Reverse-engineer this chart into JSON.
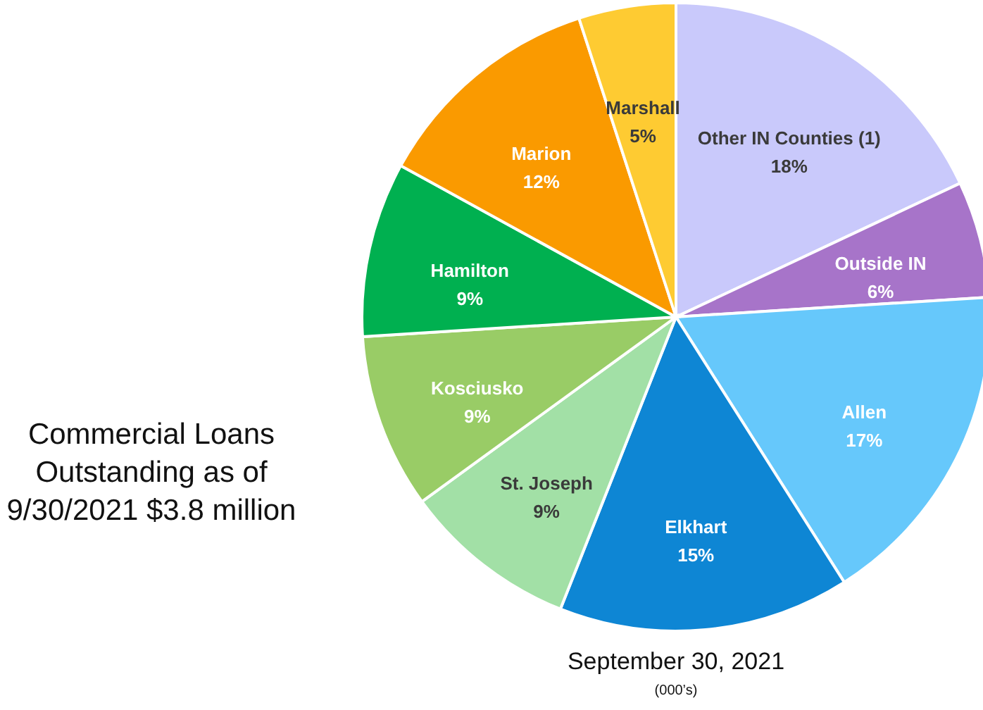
{
  "chart_data": {
    "type": "pie",
    "title": "Commercial Loans Outstanding as of 9/30/2021 $3.8 million",
    "subtitle": "September 30, 2021",
    "annotations": [
      "(000’s)"
    ],
    "categories": [
      "Other IN Counties (1)",
      "Outside IN",
      "Allen",
      "Elkhart",
      "St. Joseph",
      "Kosciusko",
      "Hamilton",
      "Marion",
      "Marshall"
    ],
    "values": [
      18,
      6,
      17,
      15,
      9,
      9,
      9,
      12,
      5
    ],
    "value_labels": [
      "18%",
      "6%",
      "17%",
      "15%",
      "9%",
      "9%",
      "9%",
      "12%",
      "5%"
    ],
    "colors": [
      "#c9c9fb",
      "#a774c9",
      "#66c8fb",
      "#0e86d4",
      "#a2e0a6",
      "#99cc66",
      "#00b050",
      "#fa9a00",
      "#fecb32"
    ]
  }
}
